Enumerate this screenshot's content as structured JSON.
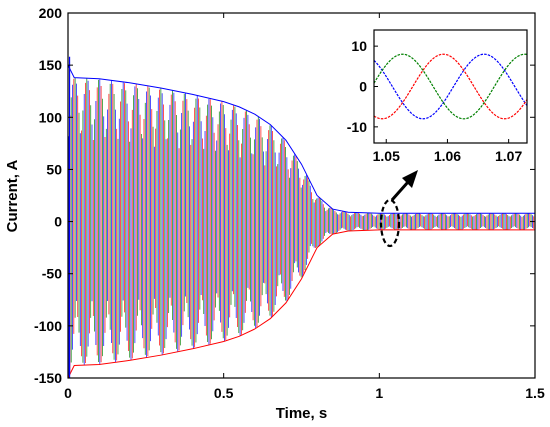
{
  "chart_data": [
    {
      "type": "line",
      "xlabel": "Time, s",
      "ylabel": "Current, A",
      "xlim": [
        0,
        1.5
      ],
      "ylim": [
        -150,
        200
      ],
      "xticks": [
        0,
        0.5,
        1,
        1.5
      ],
      "xtick_labels": [
        "0",
        "0.5",
        "1",
        "1.5"
      ],
      "yticks": [
        -150,
        -100,
        -50,
        0,
        50,
        100,
        150,
        200
      ],
      "ytick_labels": [
        "-150",
        "-100",
        "-50",
        "0",
        "50",
        "100",
        "150",
        "200"
      ],
      "grid": false,
      "series_colors": [
        "#0000ff",
        "#ff0000",
        "#008000"
      ],
      "envelope": {
        "time": [
          0.0,
          0.02,
          0.1,
          0.2,
          0.3,
          0.4,
          0.5,
          0.55,
          0.6,
          0.65,
          0.7,
          0.75,
          0.8,
          0.85,
          0.9,
          1.0,
          1.5
        ],
        "peak_current": [
          150,
          138,
          137,
          133,
          128,
          122,
          115,
          110,
          103,
          93,
          78,
          55,
          25,
          12,
          9,
          8,
          8
        ]
      },
      "initial_transient_peak": {
        "time": 0.005,
        "value": 158
      },
      "annotation": "dashed ellipse around t ≈ 1.05 s with arrow pointing to zoomed inset"
    },
    {
      "type": "line",
      "role": "inset-zoom",
      "xlim": [
        1.048,
        1.073
      ],
      "ylim": [
        -14,
        14
      ],
      "xticks": [
        1.05,
        1.06,
        1.07
      ],
      "xtick_labels": [
        "1.05",
        "1.06",
        "1.07"
      ],
      "yticks": [
        10,
        0,
        -10
      ],
      "ytick_labels": [
        "10",
        "0",
        "-10"
      ],
      "amplitude": 8,
      "frequency_hz": 50,
      "series": [
        {
          "color": "#0000ff",
          "phase_deg": -18
        },
        {
          "color": "#ff0000",
          "phase_deg": 102
        },
        {
          "color": "#008000",
          "phase_deg": -138
        }
      ]
    }
  ]
}
